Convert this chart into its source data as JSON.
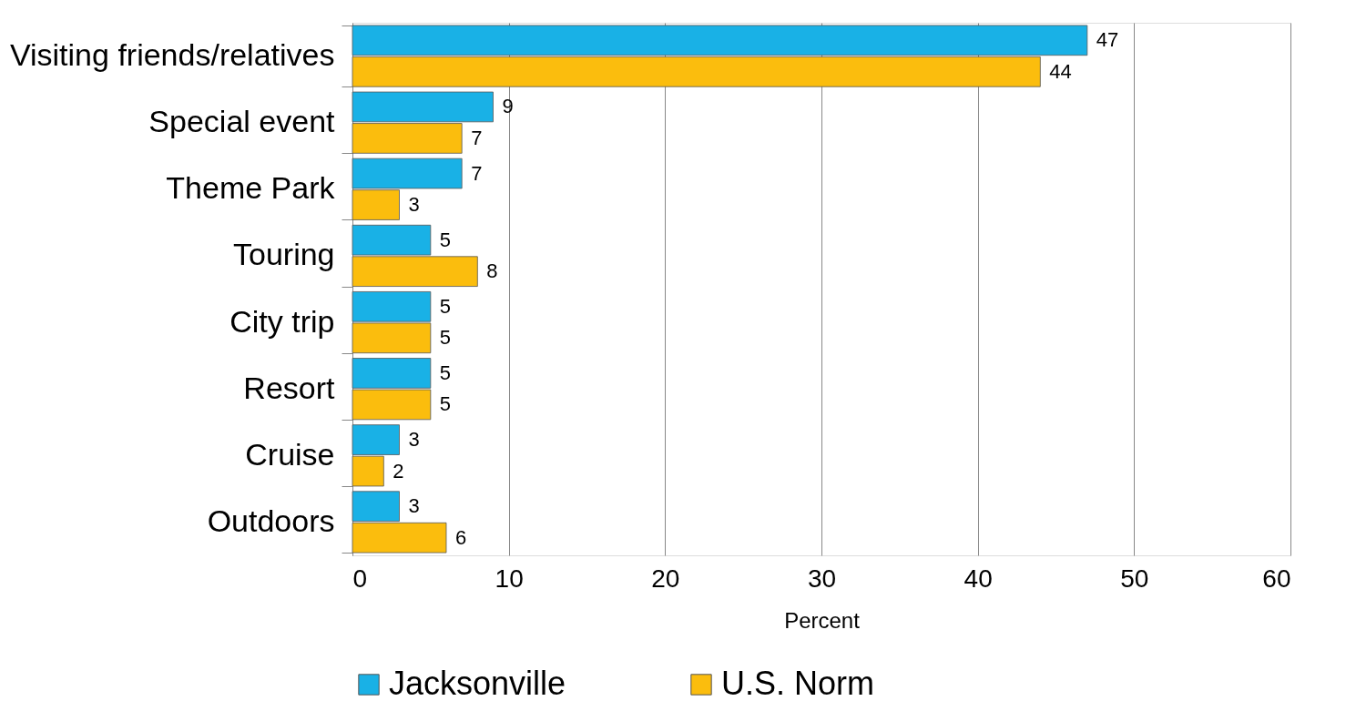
{
  "chart_data": {
    "type": "bar",
    "orientation": "horizontal",
    "xlabel": "Percent",
    "categories": [
      "Visiting friends/relatives",
      "Special event",
      "Theme Park",
      "Touring",
      "City trip",
      "Resort",
      "Cruise",
      "Outdoors"
    ],
    "series": [
      {
        "name": "Jacksonville",
        "color": "#19b1e6",
        "values": [
          47,
          9,
          7,
          5,
          5,
          5,
          3,
          3
        ]
      },
      {
        "name": "U.S. Norm",
        "color": "#fbbd0d",
        "values": [
          44,
          7,
          3,
          8,
          5,
          5,
          2,
          6
        ]
      }
    ],
    "xlim": [
      0,
      60
    ],
    "xticks": [
      0,
      10,
      20,
      30,
      40,
      50,
      60
    ],
    "grid": "x",
    "legend": "bottom",
    "data_labels": true
  }
}
